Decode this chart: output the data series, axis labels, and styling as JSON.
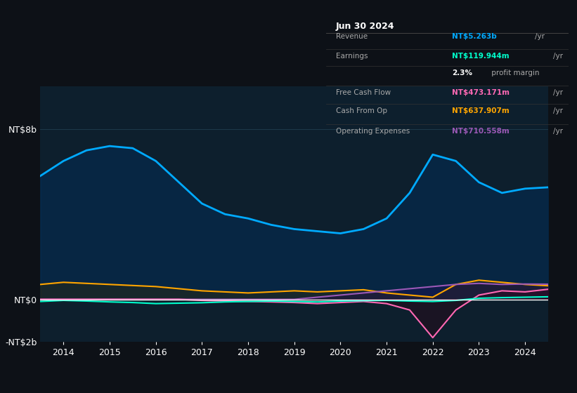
{
  "bg_color": "#0d1117",
  "plot_bg_color": "#0d1f2d",
  "grid_color": "#1e3a4a",
  "zero_line_color": "#ffffff",
  "title_box": {
    "date": "Jun 30 2024",
    "rows": [
      {
        "label": "Revenue",
        "value": "NT$5.263b",
        "unit": "/yr",
        "value_color": "#00aaff"
      },
      {
        "label": "Earnings",
        "value": "NT$119.944m",
        "unit": "/yr",
        "value_color": "#00ffcc"
      },
      {
        "label": "",
        "value": "2.3%",
        "unit": " profit margin",
        "value_color": "#ffffff"
      },
      {
        "label": "Free Cash Flow",
        "value": "NT$473.171m",
        "unit": "/yr",
        "value_color": "#ff69b4"
      },
      {
        "label": "Cash From Op",
        "value": "NT$637.907m",
        "unit": "/yr",
        "value_color": "#ffa500"
      },
      {
        "label": "Operating Expenses",
        "value": "NT$710.558m",
        "unit": "/yr",
        "value_color": "#9b59b6"
      }
    ]
  },
  "ylim": [
    -2000000000,
    10000000000
  ],
  "yticks": [
    0,
    8000000000
  ],
  "ytick_labels": [
    "NT$0",
    "NT$8b"
  ],
  "ytick_neg_labels": [
    "-NT$2b"
  ],
  "ytick_neg_vals": [
    -2000000000
  ],
  "years": [
    2013.5,
    2014,
    2014.5,
    2015,
    2015.5,
    2016,
    2016.5,
    2017,
    2017.5,
    2018,
    2018.5,
    2019,
    2019.5,
    2020,
    2020.5,
    2021,
    2021.5,
    2022,
    2022.5,
    2023,
    2023.5,
    2024,
    2024.5
  ],
  "revenue": [
    5800000000,
    6500000000,
    7000000000,
    7200000000,
    7100000000,
    6500000000,
    5500000000,
    4500000000,
    4000000000,
    3800000000,
    3500000000,
    3300000000,
    3200000000,
    3100000000,
    3300000000,
    3800000000,
    5000000000,
    6800000000,
    6500000000,
    5500000000,
    5000000000,
    5200000000,
    5263000000
  ],
  "earnings": [
    -100000000,
    -50000000,
    -80000000,
    -120000000,
    -150000000,
    -200000000,
    -180000000,
    -160000000,
    -120000000,
    -100000000,
    -80000000,
    -100000000,
    -120000000,
    -80000000,
    -60000000,
    -50000000,
    -80000000,
    -100000000,
    -50000000,
    50000000,
    80000000,
    100000000,
    119944000
  ],
  "free_cash_flow": [
    0,
    0,
    0,
    0,
    0,
    0,
    0,
    -50000000,
    -80000000,
    -100000000,
    -120000000,
    -150000000,
    -200000000,
    -150000000,
    -100000000,
    -200000000,
    -500000000,
    -1800000000,
    -500000000,
    200000000,
    400000000,
    350000000,
    473171000
  ],
  "cash_from_op": [
    700000000,
    800000000,
    750000000,
    700000000,
    650000000,
    600000000,
    500000000,
    400000000,
    350000000,
    300000000,
    350000000,
    400000000,
    350000000,
    400000000,
    450000000,
    300000000,
    200000000,
    100000000,
    700000000,
    900000000,
    800000000,
    700000000,
    637907000
  ],
  "operating_expenses": [
    0,
    0,
    0,
    0,
    0,
    0,
    0,
    0,
    0,
    0,
    0,
    0,
    100000000,
    200000000,
    300000000,
    400000000,
    500000000,
    600000000,
    700000000,
    750000000,
    700000000,
    720000000,
    710558000
  ],
  "legend": [
    {
      "label": "Revenue",
      "color": "#00aaff"
    },
    {
      "label": "Earnings",
      "color": "#00ffcc"
    },
    {
      "label": "Free Cash Flow",
      "color": "#ff69b4"
    },
    {
      "label": "Cash From Op",
      "color": "#ffa500"
    },
    {
      "label": "Operating Expenses",
      "color": "#9b59b6"
    }
  ]
}
